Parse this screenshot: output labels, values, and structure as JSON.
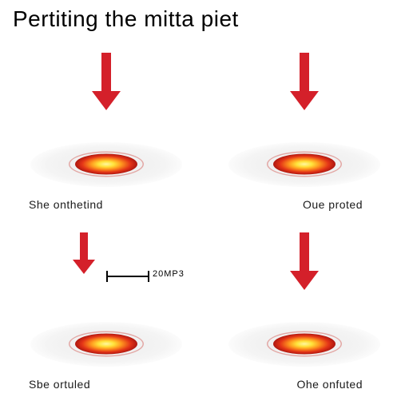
{
  "title": "Pertiting the mitta piet",
  "arrow_color": "#d4202a",
  "panels": {
    "tl": {
      "caption": "She onthetind",
      "caption_side": "left"
    },
    "tr": {
      "caption": "Oue proted",
      "caption_side": "right"
    },
    "bl": {
      "caption": "Sbe ortuled",
      "caption_side": "left",
      "tick_label": "20MP3"
    },
    "br": {
      "caption": "Ohe onfuted",
      "caption_side": "right"
    }
  },
  "disc": {
    "fill": "#ececec",
    "spot_colors": [
      "#fff7a0",
      "#ffe23a",
      "#ff9a1f",
      "#e33417",
      "#b01810"
    ]
  },
  "fonts": {
    "title_size": 28,
    "caption_size": 14,
    "tick_size": 11
  }
}
